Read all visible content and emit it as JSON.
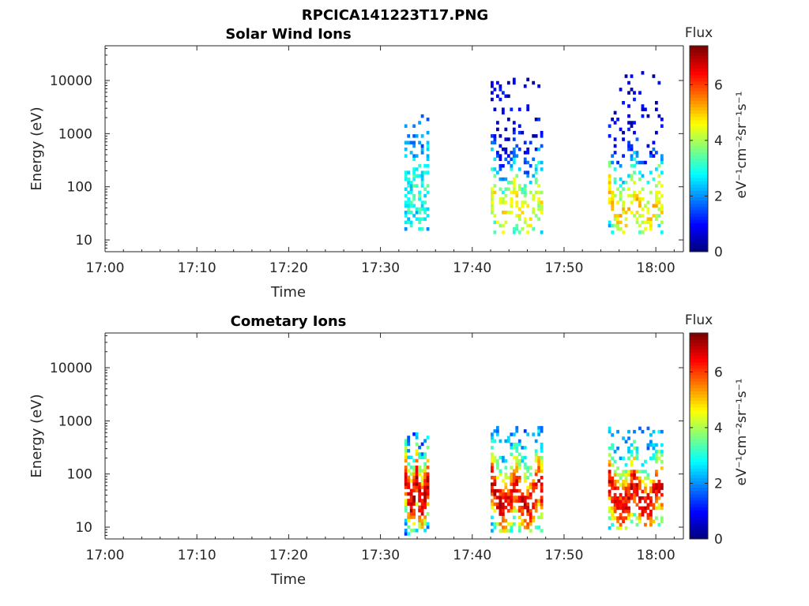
{
  "figure": {
    "title": "RPCICA141223T17.PNG"
  },
  "colors": {
    "colormap": "jet",
    "axis": "#262626"
  },
  "chart_data": [
    {
      "type": "heatmap",
      "title": "Solar Wind Ions",
      "xlabel": "Time",
      "ylabel": "Energy (eV)",
      "x_tick_labels": [
        "17:00",
        "17:10",
        "17:20",
        "17:30",
        "17:40",
        "17:50",
        "18:00"
      ],
      "x_ticks_min": [
        0,
        10,
        20,
        30,
        40,
        50,
        60
      ],
      "xlim_min": [
        0,
        63
      ],
      "y_scale": "log",
      "y_tick_labels": [
        "10",
        "100",
        "1000",
        "10000"
      ],
      "y_ticks": [
        10,
        100,
        1000,
        10000
      ],
      "ylim": [
        6,
        45000
      ],
      "colorbar": {
        "label": "Flux",
        "unit": "eV⁻¹cm⁻²sr⁻¹s⁻¹",
        "tick_labels": [
          "0",
          "2",
          "4",
          "6"
        ],
        "ticks": [
          0,
          2,
          4,
          6
        ],
        "clim": [
          0,
          7.4
        ]
      },
      "clusters": [
        {
          "t": [
            32.6,
            35.2
          ],
          "e": [
            15,
            2500
          ],
          "peak_e": 40,
          "peak_v": 3.0,
          "w": 1.0,
          "base": 0.8,
          "density": 0.6,
          "seed": 11
        },
        {
          "t": [
            42.0,
            47.6
          ],
          "e": [
            13,
            10000
          ],
          "peak_e": 25,
          "peak_v": 4.6,
          "w": 0.55,
          "base": 0.6,
          "density": 0.42,
          "seed": 23
        },
        {
          "t": [
            54.8,
            60.7
          ],
          "e": [
            13,
            15000
          ],
          "peak_e": 25,
          "peak_v": 4.8,
          "w": 0.55,
          "base": 0.6,
          "density": 0.4,
          "seed": 37
        }
      ]
    },
    {
      "type": "heatmap",
      "title": "Cometary Ions",
      "xlabel": "Time",
      "ylabel": "Energy (eV)",
      "x_tick_labels": [
        "17:00",
        "17:10",
        "17:20",
        "17:30",
        "17:40",
        "17:50",
        "18:00"
      ],
      "x_ticks_min": [
        0,
        10,
        20,
        30,
        40,
        50,
        60
      ],
      "xlim_min": [
        0,
        63
      ],
      "y_scale": "log",
      "y_tick_labels": [
        "10",
        "100",
        "1000",
        "10000"
      ],
      "y_ticks": [
        10,
        100,
        1000,
        10000
      ],
      "ylim": [
        6,
        45000
      ],
      "colorbar": {
        "label": "Flux",
        "unit": "eV⁻¹cm⁻²sr⁻¹s⁻¹",
        "tick_labels": [
          "0",
          "2",
          "4",
          "6"
        ],
        "ticks": [
          0,
          2,
          4,
          6
        ],
        "clim": [
          0,
          7.4
        ]
      },
      "clusters": [
        {
          "t": [
            32.6,
            35.2
          ],
          "e": [
            7,
            600
          ],
          "peak_e": 25,
          "peak_v": 6.8,
          "w": 0.45,
          "base": 1.4,
          "density": 0.92,
          "seed": 53
        },
        {
          "t": [
            42.0,
            47.6
          ],
          "e": [
            8,
            700
          ],
          "peak_e": 22,
          "peak_v": 6.6,
          "w": 0.45,
          "base": 1.8,
          "density": 0.7,
          "seed": 67
        },
        {
          "t": [
            54.8,
            60.7
          ],
          "e": [
            9,
            700
          ],
          "peak_e": 22,
          "peak_v": 6.6,
          "w": 0.45,
          "base": 1.8,
          "density": 0.7,
          "seed": 79
        }
      ]
    }
  ]
}
